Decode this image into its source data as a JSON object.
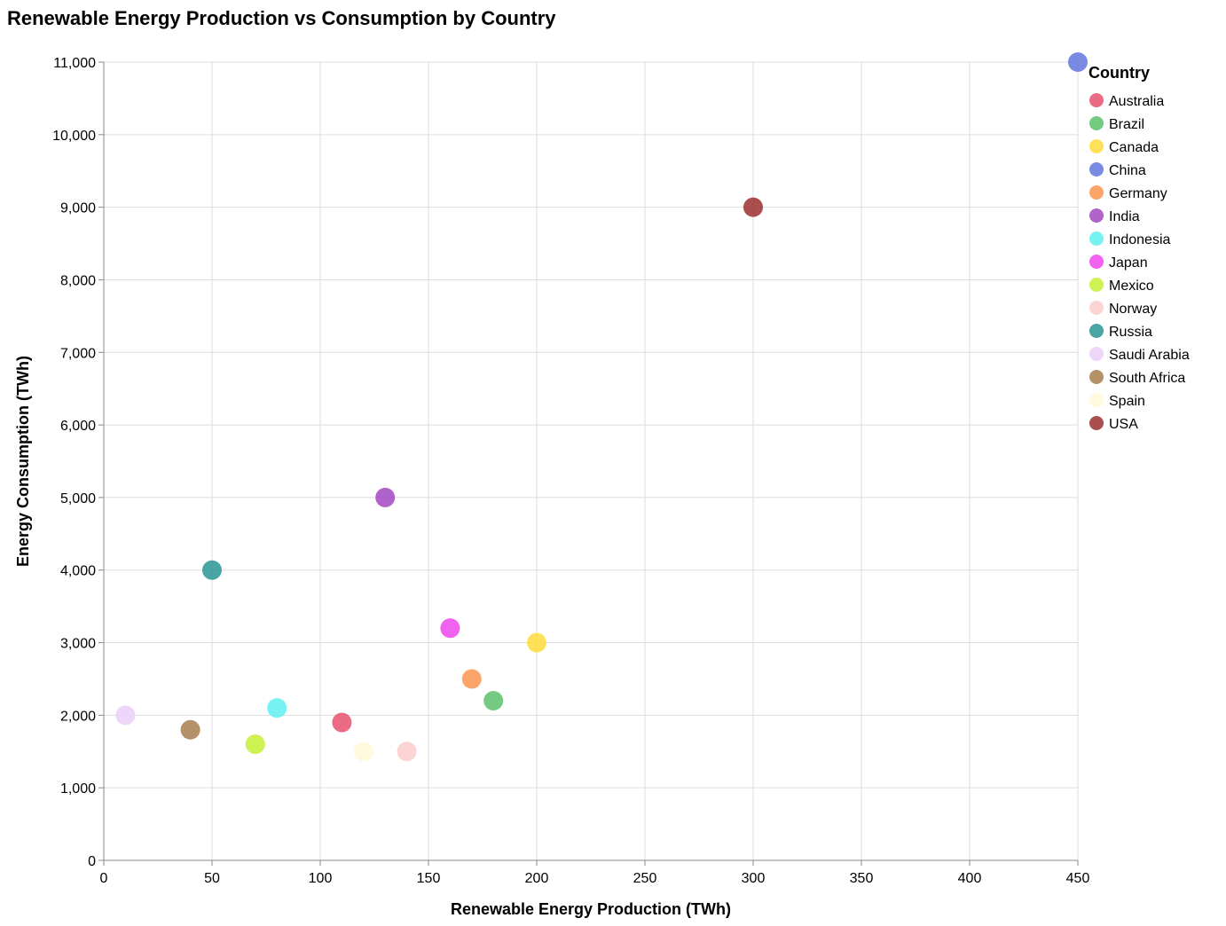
{
  "chart_data": {
    "type": "scatter",
    "title": "Renewable Energy Production vs Consumption by Country",
    "xlabel": "Renewable Energy Production (TWh)",
    "ylabel": "Energy Consumption (TWh)",
    "xlim": [
      0,
      450
    ],
    "ylim": [
      0,
      11000
    ],
    "x_ticks": [
      0,
      50,
      100,
      150,
      200,
      250,
      300,
      350,
      400,
      450
    ],
    "y_ticks": [
      0,
      1000,
      2000,
      3000,
      4000,
      5000,
      6000,
      7000,
      8000,
      9000,
      10000,
      11000
    ],
    "grid": true,
    "legend": {
      "title": "Country",
      "position": "right"
    },
    "points": [
      {
        "country": "Australia",
        "x": 110,
        "y": 1900,
        "color": "#e8506f"
      },
      {
        "country": "Brazil",
        "x": 180,
        "y": 2200,
        "color": "#5cc16b"
      },
      {
        "country": "Canada",
        "x": 200,
        "y": 3000,
        "color": "#ffdc3c"
      },
      {
        "country": "China",
        "x": 450,
        "y": 11000,
        "color": "#6176dd"
      },
      {
        "country": "Germany",
        "x": 170,
        "y": 2500,
        "color": "#fd9450"
      },
      {
        "country": "India",
        "x": 130,
        "y": 5000,
        "color": "#a148c2"
      },
      {
        "country": "Indonesia",
        "x": 80,
        "y": 2100,
        "color": "#5ef0f0"
      },
      {
        "country": "Japan",
        "x": 160,
        "y": 3200,
        "color": "#ef46ef"
      },
      {
        "country": "Mexico",
        "x": 70,
        "y": 1600,
        "color": "#c5ef36"
      },
      {
        "country": "Norway",
        "x": 140,
        "y": 1500,
        "color": "#fdcccc"
      },
      {
        "country": "Russia",
        "x": 50,
        "y": 4000,
        "color": "#2a9595"
      },
      {
        "country": "Saudi Arabia",
        "x": 10,
        "y": 2000,
        "color": "#ebcffa"
      },
      {
        "country": "South Africa",
        "x": 40,
        "y": 1800,
        "color": "#a87e50"
      },
      {
        "country": "Spain",
        "x": 120,
        "y": 1500,
        "color": "#fff9d7"
      },
      {
        "country": "USA",
        "x": 300,
        "y": 9000,
        "color": "#9b2f2f"
      }
    ]
  }
}
